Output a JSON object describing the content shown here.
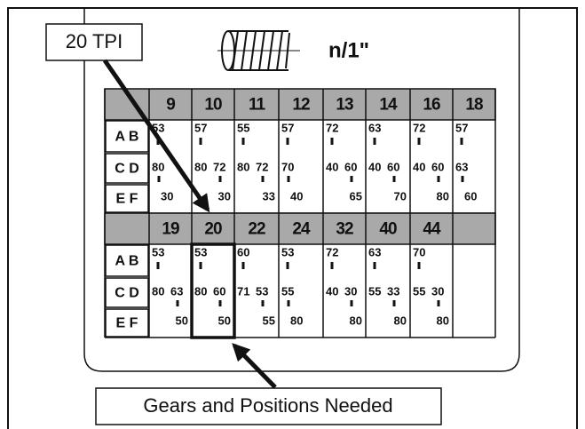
{
  "callouts": {
    "tpi": "20 TPI",
    "gears": "Gears and Positions Needed"
  },
  "header": {
    "title": "n/1\""
  },
  "table": {
    "row_labels": [
      "A B",
      "C D",
      "E F"
    ],
    "sections": [
      {
        "tpi": [
          "9",
          "10",
          "11",
          "12",
          "13",
          "14",
          "16",
          "18"
        ],
        "cells": [
          {
            "ab": "53",
            "cd": [
              "80"
            ],
            "ef": "30"
          },
          {
            "ab": "57",
            "cd": [
              "80",
              "72"
            ],
            "ef": "30"
          },
          {
            "ab": "55",
            "cd": [
              "80",
              "72"
            ],
            "ef": "33"
          },
          {
            "ab": "57",
            "cd": [
              "70"
            ],
            "ef": "40"
          },
          {
            "ab": "72",
            "cd": [
              "40",
              "60"
            ],
            "ef": "65"
          },
          {
            "ab": "63",
            "cd": [
              "40",
              "60"
            ],
            "ef": "70"
          },
          {
            "ab": "72",
            "cd": [
              "40",
              "60"
            ],
            "ef": "80"
          },
          {
            "ab": "57",
            "cd": [
              "63"
            ],
            "ef": "60"
          }
        ]
      },
      {
        "tpi": [
          "19",
          "20",
          "22",
          "24",
          "32",
          "40",
          "44"
        ],
        "cells": [
          {
            "ab": "53",
            "cd": [
              "80",
              "63"
            ],
            "ef": "50"
          },
          {
            "ab": "53",
            "cd": [
              "80",
              "60"
            ],
            "ef": "50"
          },
          {
            "ab": "60",
            "cd": [
              "71",
              "53"
            ],
            "ef": "55"
          },
          {
            "ab": "53",
            "cd": [
              "55"
            ],
            "ef": "80"
          },
          {
            "ab": "72",
            "cd": [
              "40",
              "30"
            ],
            "ef": "80"
          },
          {
            "ab": "63",
            "cd": [
              "55",
              "33"
            ],
            "ef": "80"
          },
          {
            "ab": "70",
            "cd": [
              "55",
              "30"
            ],
            "ef": "80"
          }
        ]
      }
    ]
  }
}
